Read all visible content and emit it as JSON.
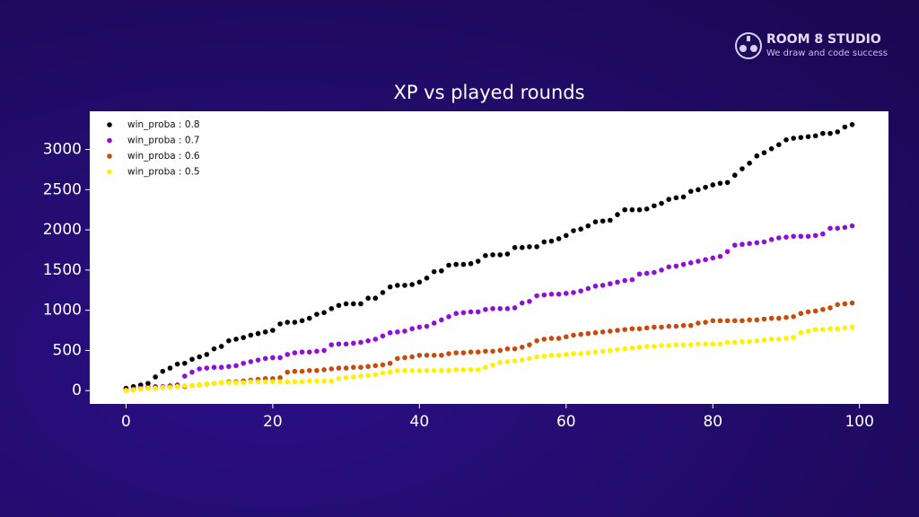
{
  "branding": {
    "name": "ROOM 8 STUDIO",
    "tagline": "We draw and code success"
  },
  "chart_data": {
    "type": "scatter",
    "title": "XP vs played rounds",
    "x": [
      0,
      1,
      2,
      3,
      4,
      5,
      6,
      7,
      8,
      9,
      10,
      11,
      12,
      13,
      14,
      15,
      16,
      17,
      18,
      19,
      20,
      21,
      22,
      23,
      24,
      25,
      26,
      27,
      28,
      29,
      30,
      31,
      32,
      33,
      34,
      35,
      36,
      37,
      38,
      39,
      40,
      41,
      42,
      43,
      44,
      45,
      46,
      47,
      48,
      49,
      50,
      51,
      52,
      53,
      54,
      55,
      56,
      57,
      58,
      59,
      60,
      61,
      62,
      63,
      64,
      65,
      66,
      67,
      68,
      69,
      70,
      71,
      72,
      73,
      74,
      75,
      76,
      77,
      78,
      79,
      80,
      81,
      82,
      83,
      84,
      85,
      86,
      87,
      88,
      89,
      90,
      91,
      92,
      93,
      94,
      95,
      96,
      97,
      98,
      99
    ],
    "series": [
      {
        "name": "win_proba : 0.8",
        "color": "#000000",
        "values": [
          30,
          50,
          70,
          90,
          170,
          240,
          280,
          330,
          340,
          390,
          420,
          450,
          520,
          550,
          620,
          640,
          660,
          690,
          710,
          730,
          750,
          830,
          850,
          850,
          870,
          900,
          950,
          970,
          1020,
          1060,
          1080,
          1080,
          1080,
          1150,
          1150,
          1220,
          1290,
          1310,
          1310,
          1320,
          1350,
          1400,
          1480,
          1490,
          1560,
          1570,
          1570,
          1580,
          1610,
          1680,
          1690,
          1690,
          1700,
          1780,
          1780,
          1790,
          1790,
          1850,
          1860,
          1890,
          1930,
          1990,
          2010,
          2050,
          2100,
          2110,
          2120,
          2190,
          2250,
          2250,
          2250,
          2260,
          2300,
          2330,
          2380,
          2400,
          2410,
          2480,
          2500,
          2530,
          2560,
          2580,
          2590,
          2680,
          2760,
          2830,
          2920,
          2960,
          3010,
          3060,
          3120,
          3140,
          3150,
          3160,
          3170,
          3200,
          3200,
          3220,
          3280,
          3310
        ]
      },
      {
        "name": "win_proba : 0.7",
        "color": "#8e10d6",
        "values": [
          10,
          20,
          30,
          40,
          50,
          50,
          60,
          70,
          180,
          230,
          270,
          280,
          290,
          290,
          300,
          310,
          340,
          360,
          380,
          400,
          410,
          410,
          450,
          470,
          480,
          480,
          490,
          500,
          570,
          580,
          580,
          590,
          600,
          620,
          640,
          680,
          720,
          730,
          740,
          770,
          790,
          800,
          840,
          880,
          920,
          960,
          970,
          980,
          980,
          1010,
          1020,
          1020,
          1020,
          1030,
          1090,
          1110,
          1180,
          1190,
          1200,
          1200,
          1210,
          1220,
          1240,
          1270,
          1300,
          1310,
          1330,
          1350,
          1370,
          1380,
          1450,
          1460,
          1470,
          1500,
          1540,
          1550,
          1570,
          1590,
          1610,
          1630,
          1650,
          1670,
          1730,
          1810,
          1820,
          1830,
          1840,
          1850,
          1880,
          1900,
          1910,
          1920,
          1920,
          1920,
          1930,
          1950,
          2020,
          2020,
          2030,
          2050
        ]
      },
      {
        "name": "win_proba : 0.6",
        "color": "#c84b0c",
        "values": [
          5,
          10,
          20,
          30,
          30,
          40,
          50,
          50,
          50,
          60,
          70,
          80,
          90,
          100,
          110,
          110,
          120,
          130,
          140,
          150,
          150,
          160,
          230,
          240,
          240,
          250,
          250,
          260,
          270,
          280,
          280,
          290,
          290,
          300,
          310,
          320,
          340,
          400,
          410,
          420,
          440,
          440,
          440,
          440,
          460,
          470,
          470,
          480,
          480,
          490,
          490,
          500,
          520,
          520,
          540,
          570,
          620,
          640,
          650,
          650,
          670,
          690,
          700,
          710,
          720,
          730,
          740,
          750,
          760,
          770,
          770,
          780,
          790,
          790,
          800,
          800,
          810,
          810,
          840,
          850,
          870,
          870,
          870,
          870,
          870,
          880,
          880,
          890,
          900,
          900,
          910,
          920,
          960,
          980,
          990,
          1010,
          1030,
          1070,
          1080,
          1090
        ]
      },
      {
        "name": "win_proba : 0.5",
        "color": "#fff000",
        "values": [
          0,
          10,
          20,
          30,
          30,
          40,
          40,
          50,
          60,
          60,
          70,
          80,
          90,
          100,
          100,
          100,
          100,
          110,
          110,
          110,
          110,
          110,
          110,
          110,
          110,
          120,
          120,
          120,
          120,
          150,
          160,
          170,
          180,
          190,
          200,
          220,
          230,
          250,
          250,
          250,
          250,
          250,
          250,
          250,
          250,
          260,
          260,
          260,
          260,
          290,
          320,
          350,
          360,
          370,
          380,
          400,
          420,
          430,
          440,
          440,
          450,
          460,
          460,
          470,
          480,
          490,
          500,
          510,
          520,
          530,
          540,
          550,
          550,
          560,
          560,
          570,
          570,
          570,
          580,
          580,
          580,
          580,
          600,
          600,
          610,
          610,
          620,
          630,
          640,
          640,
          650,
          660,
          720,
          740,
          760,
          760,
          770,
          770,
          780,
          790
        ]
      }
    ],
    "xlim": [
      -4.95,
      103.95
    ],
    "ylim": [
      -165.5,
      3475.5
    ],
    "xticks": [
      0,
      20,
      40,
      60,
      80,
      100
    ],
    "yticks": [
      0,
      500,
      1000,
      1500,
      2000,
      2500,
      3000
    ],
    "legend": "upper left"
  }
}
